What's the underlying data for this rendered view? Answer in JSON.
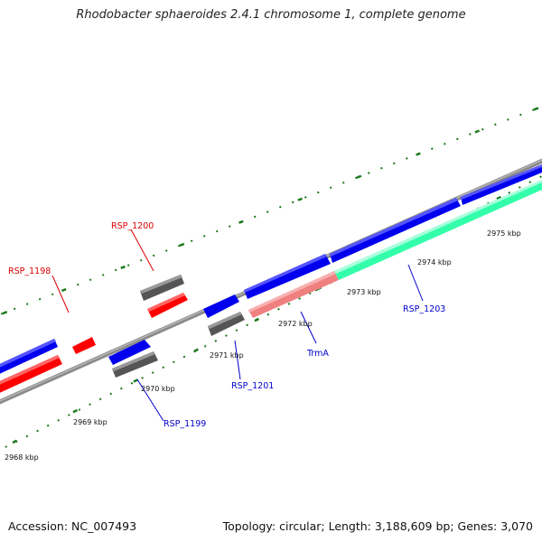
{
  "title": "Rhodobacter sphaeroides 2.4.1 chromosome 1, complete genome",
  "footer": {
    "accession": "Accession: NC_007493",
    "topology": "Topology: circular; Length: 3,188,609 bp; Genes: 3,070"
  },
  "colors": {
    "backbone": "#8a8a8a",
    "tick": "#1a7a1a",
    "cds": "#0000ee",
    "cds_reverse": "#ff0000",
    "pseudo": "#555555",
    "trna": "#f08080",
    "rrna": "#33ffaa",
    "label_blue": "#0000cc",
    "label_red": "#dd0000"
  },
  "scale_ticks": [
    "2968 kbp",
    "2969 kbp",
    "2970 kbp",
    "2971 kbp",
    "2972 kbp",
    "2973 kbp",
    "2974 kbp",
    "2975 kbp"
  ],
  "gene_labels": [
    {
      "text": "RSP_1198",
      "color": "red"
    },
    {
      "text": "RSP_1200",
      "color": "red"
    },
    {
      "text": "RSP_1199",
      "color": "blue"
    },
    {
      "text": "RSP_1201",
      "color": "blue"
    },
    {
      "text": "TrmA",
      "color": "blue"
    },
    {
      "text": "RSP_1203",
      "color": "blue"
    }
  ]
}
